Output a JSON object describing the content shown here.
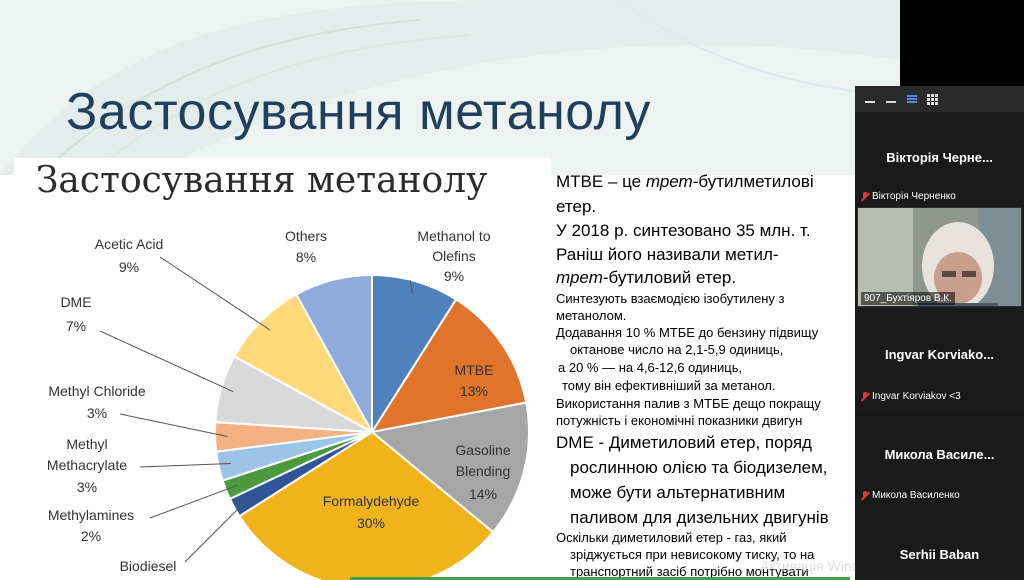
{
  "slide": {
    "title": "Застосування метанолу",
    "chart_title": "Застосування метанолу",
    "text": {
      "l1a": "MTBE – це ",
      "l1b": "трет",
      "l1c": "-бутилметилові",
      "l2": "етер.",
      "l3": "У 2018 р. синтезовано 35 млн. т.",
      "l4": "Раніш його називали метил-",
      "l5a": "трет",
      "l5b": "-бутиловий етер.",
      "l6": "Синтезують взаємодією ізобутилену з",
      "l7": "метанолом.",
      "l8": "Додавання 10 % MTБE до бензину підвищу",
      "l9": "октанове число на 2,1-5,9 одиниць,",
      "l10": "а 20 % — на 4,6-12,6 одиниць,",
      "l11": "тому він ефективніший за метанол.",
      "l12": "Використання палив з MTБE дещо покращу",
      "l13": "потужність і економічні показники двигун",
      "l14": "DME - Диметиловий етер, поряд",
      "l15": "рослинною олією та біодизелем,",
      "l16": "може бути альтернативним",
      "l17": "паливом для дизельних двигунів",
      "l18": "Оскільки диметиловий етер - газ, який",
      "l19": "зріджується при невисокому тиску, то на",
      "l20": "транспортний засіб потрібно монтувати"
    }
  },
  "chart_data": {
    "type": "pie",
    "title": "Застосування метанолу",
    "slices": [
      {
        "name": "Methanol to Olefins",
        "value": 9,
        "label": "9%",
        "color": "#4f81bd"
      },
      {
        "name": "MTBE",
        "value": 13,
        "label": "13%",
        "color": "#e0742a"
      },
      {
        "name": "Gasoline Blending",
        "value": 14,
        "label": "14%",
        "color": "#a6a6a6"
      },
      {
        "name": "Formalydehyde",
        "value": 30,
        "label": "30%",
        "color": "#f0b31c"
      },
      {
        "name": "Biodiesel",
        "value": 2,
        "label": "",
        "color": "#2f5597"
      },
      {
        "name": "Methylamines",
        "value": 2,
        "label": "2%",
        "color": "#4c9a3e"
      },
      {
        "name": "Methyl Methacrylate",
        "value": 3,
        "label": "3%",
        "color": "#9dc3e6"
      },
      {
        "name": "Methyl Chloride",
        "value": 3,
        "label": "3%",
        "color": "#f4b183"
      },
      {
        "name": "DME",
        "value": 7,
        "label": "7%",
        "color": "#d9d9d9"
      },
      {
        "name": "Acetic Acid",
        "value": 9,
        "label": "9%",
        "color": "#ffd97a"
      },
      {
        "name": "Others",
        "value": 8,
        "label": "8%",
        "color": "#8faadc"
      }
    ],
    "label_text": {
      "methanol1": "Methanol to",
      "methanol2": "Olefins",
      "methanol3": "9%",
      "mtbe1": "MTBE",
      "mtbe2": "13%",
      "gas1": "Gasoline",
      "gas2": "Blending",
      "gas3": "14%",
      "form1": "Formalydehyde",
      "form2": "30%",
      "bio1": "Biodiesel",
      "ma1": "Methylamines",
      "ma2": "2%",
      "mm1": "Methyl",
      "mm2": "Methacrylate",
      "mm3": "3%",
      "mc1": "Methyl Chloride",
      "mc2": "3%",
      "dme1": "DME",
      "dme2": "7%",
      "aa1": "Acetic Acid",
      "aa2": "9%",
      "oth1": "Others",
      "oth2": "8%"
    }
  },
  "overlay": {
    "windows_watermark": "Активація Windows"
  },
  "zoom": {
    "tiles": [
      {
        "name": "Вікторія Черне...",
        "label": "Вікторія Черненко"
      },
      {
        "name": "",
        "label": "907_Бухтіяров В.К."
      },
      {
        "name": "Ingvar Korviako...",
        "label": "Ingvar Korviakov <3"
      },
      {
        "name": "Микола Василе...",
        "label": "Микола Василенко"
      },
      {
        "name": "Serhii Baban",
        "label": ""
      }
    ]
  }
}
